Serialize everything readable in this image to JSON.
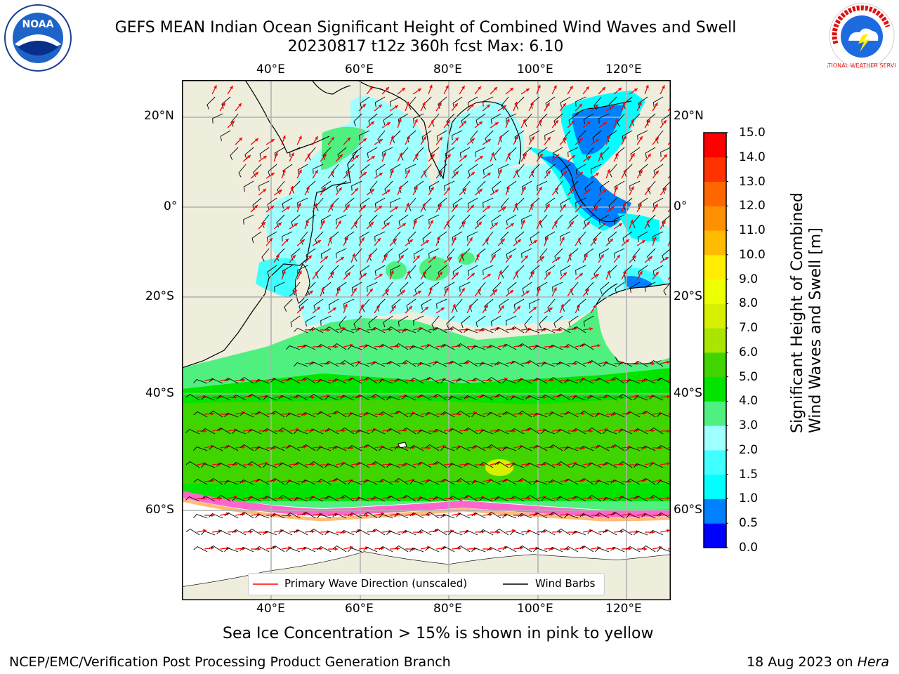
{
  "title": {
    "line1": "GEFS MEAN Indian Ocean Significant Height of Combined Wind Waves and Swell",
    "line2": "20230817 t12z 360h fcst   Max: 6.10"
  },
  "logos": {
    "noaa_text": "NOAA",
    "nws_text": "NATIONAL WEATHER SERVICE"
  },
  "map": {
    "lon_ticks": [
      "40°E",
      "60°E",
      "80°E",
      "100°E",
      "120°E"
    ],
    "lat_ticks": [
      "20°N",
      "0°",
      "20°S",
      "40°S",
      "60°S"
    ],
    "lon_range": [
      20,
      130
    ],
    "lat_range": [
      -72.5,
      27.5
    ],
    "colors": {
      "land": "#efeddc",
      "ice": "#ffffff"
    }
  },
  "colorbar": {
    "label_line1": "Significant Height of Combined",
    "label_line2": "Wind Waves and Swell [m]",
    "ticks": [
      "0.0",
      "0.5",
      "1.0",
      "1.5",
      "2.0",
      "3.0",
      "4.0",
      "5.0",
      "6.0",
      "7.0",
      "8.0",
      "9.0",
      "10.0",
      "11.0",
      "12.0",
      "13.0",
      "14.0",
      "15.0"
    ],
    "colors": [
      "#0000ff",
      "#0080ff",
      "#00ffff",
      "#40ffff",
      "#a0ffff",
      "#50f080",
      "#00e400",
      "#40d400",
      "#a8e600",
      "#d6f000",
      "#eeff00",
      "#ffee00",
      "#ffbb00",
      "#ff9000",
      "#ff6600",
      "#ff3300",
      "#ff0000"
    ]
  },
  "legend": {
    "wave_label": "Primary Wave Direction (unscaled)",
    "wind_label": "Wind Barbs",
    "wave_color": "#ff0000",
    "wind_color": "#000000"
  },
  "note": "Sea Ice Concentration > 15% is shown in pink to yellow",
  "footer": {
    "left": "NCEP/EMC/Verification Post Processing Product Generation Branch",
    "date": "18 Aug 2023 on",
    "machine": "Hera"
  }
}
